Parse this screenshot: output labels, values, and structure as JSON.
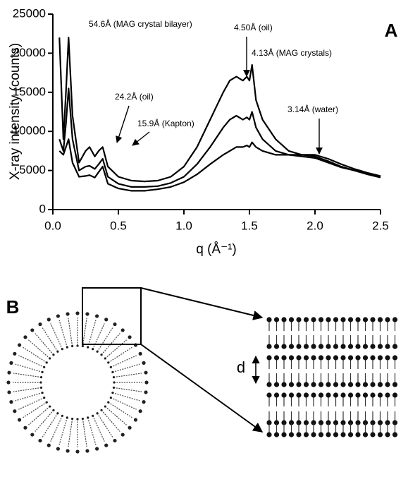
{
  "chart_data": {
    "type": "line",
    "panel_label": "A",
    "y_label": "X-ray intensity (counts)",
    "x_label": "q (Å⁻¹)",
    "x": [
      0.05,
      0.08,
      0.1,
      0.12,
      0.15,
      0.2,
      0.25,
      0.28,
      0.32,
      0.35,
      0.38,
      0.42,
      0.5,
      0.6,
      0.7,
      0.8,
      0.9,
      1.0,
      1.1,
      1.2,
      1.3,
      1.35,
      1.4,
      1.45,
      1.48,
      1.5,
      1.52,
      1.55,
      1.6,
      1.7,
      1.8,
      1.9,
      2.0,
      2.1,
      2.2,
      2.3,
      2.4,
      2.5
    ],
    "series": [
      {
        "color": "#000000",
        "values": [
          22000,
          9000,
          15000,
          22000,
          12000,
          6000,
          7500,
          8000,
          6800,
          7500,
          8000,
          5500,
          4200,
          3700,
          3600,
          3700,
          4200,
          5500,
          8000,
          11500,
          15000,
          16500,
          17000,
          16500,
          17000,
          16500,
          18500,
          14000,
          11500,
          9000,
          7500,
          7000,
          6800,
          6200,
          5500,
          5000,
          4600,
          4200
        ]
      },
      {
        "color": "#000000",
        "values": [
          9000,
          7500,
          11000,
          15500,
          9000,
          5000,
          5500,
          5600,
          5200,
          5800,
          6500,
          4200,
          3300,
          2900,
          2900,
          3000,
          3400,
          4200,
          5800,
          8000,
          10500,
          11500,
          12000,
          11500,
          11800,
          11500,
          12500,
          10500,
          9000,
          7500,
          7000,
          6800,
          6600,
          6000,
          5400,
          5000,
          4500,
          4100
        ]
      },
      {
        "color": "#000000",
        "values": [
          7500,
          7000,
          8000,
          9000,
          6000,
          4200,
          4300,
          4400,
          4100,
          4800,
          5500,
          3300,
          2700,
          2400,
          2400,
          2600,
          2900,
          3500,
          4500,
          5800,
          7000,
          7500,
          8000,
          8000,
          8200,
          8000,
          8600,
          8000,
          7500,
          7000,
          7000,
          7000,
          7000,
          6500,
          5800,
          5200,
          4700,
          4300
        ]
      }
    ],
    "xlim": [
      0,
      2.5
    ],
    "ylim": [
      0,
      25000
    ],
    "xticks": [
      {
        "value": 0,
        "label": "0.0"
      },
      0.5,
      {
        "value": 1,
        "label": "1.0"
      },
      1.5,
      {
        "value": 2,
        "label": "2.0"
      },
      2.5
    ],
    "yticks": [
      0,
      5000,
      10000,
      15000,
      20000,
      25000
    ],
    "annotations": [
      {
        "text": "54.6Å (MAG crystal bilayer)"
      },
      {
        "text": "24.2Å (oil)"
      },
      {
        "text": "15.9Å (Kapton)"
      },
      {
        "text": "4.50Å (oil)"
      },
      {
        "text": "4.13Å (MAG crystals)"
      },
      {
        "text": "3.14Å (water)"
      }
    ]
  },
  "diagram": {
    "panel_label": "B",
    "spacing_label": "d"
  }
}
